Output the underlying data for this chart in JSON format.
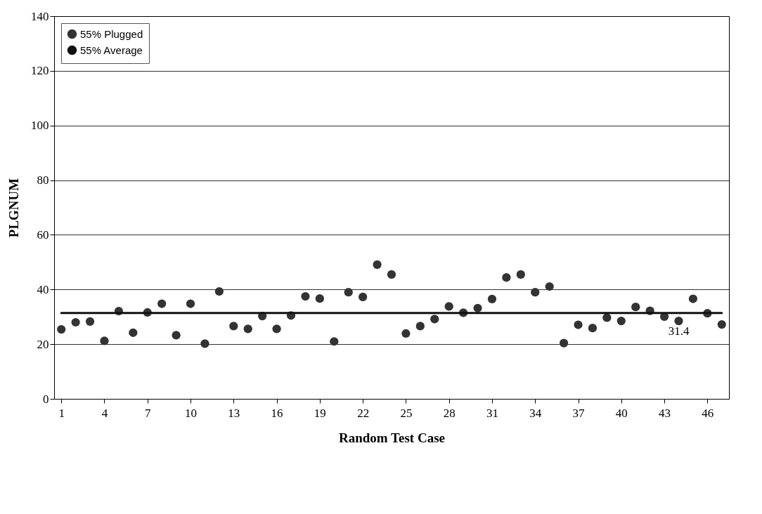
{
  "chart_data": {
    "type": "scatter",
    "xlabel": "Random Test Case",
    "ylabel": "PLGNUM",
    "x": [
      1,
      2,
      3,
      4,
      5,
      6,
      7,
      8,
      9,
      10,
      11,
      12,
      13,
      14,
      15,
      16,
      17,
      18,
      19,
      20,
      21,
      22,
      23,
      24,
      25,
      26,
      27,
      28,
      29,
      30,
      31,
      32,
      33,
      34,
      35,
      36,
      37,
      38,
      39,
      40,
      41,
      42,
      43,
      44,
      45,
      46,
      47
    ],
    "series": [
      {
        "name": "55% Plugged",
        "color": "#333333",
        "values": [
          25.4,
          28.0,
          28.3,
          21.2,
          32.1,
          24.2,
          31.6,
          34.8,
          23.3,
          34.8,
          20.2,
          39.3,
          26.6,
          25.6,
          30.3,
          25.6,
          30.5,
          37.5,
          36.7,
          21.0,
          39.0,
          37.3,
          49.1,
          45.5,
          23.9,
          26.6,
          29.2,
          33.8,
          31.5,
          33.2,
          36.5,
          44.4,
          45.5,
          39.0,
          41.1,
          20.4,
          27.1,
          25.9,
          29.7,
          28.5,
          33.6,
          32.2,
          30.1,
          28.5,
          36.6,
          31.3,
          27.2
        ]
      },
      {
        "name": "55% Average",
        "type": "line",
        "color": "#111111",
        "marker": "none",
        "x": [
          1,
          47
        ],
        "values": [
          31.4,
          31.4
        ]
      }
    ],
    "annotations": [
      {
        "text": "31.4",
        "x": 44,
        "y": 31.4
      }
    ],
    "xlim": [
      0.5,
      47.5
    ],
    "xticks": [
      1,
      4,
      7,
      10,
      13,
      16,
      19,
      22,
      25,
      28,
      31,
      34,
      37,
      40,
      43,
      46
    ],
    "ylim": [
      0,
      140
    ],
    "yticks": [
      0,
      20,
      40,
      60,
      80,
      100,
      120,
      140
    ],
    "grid": "y",
    "legend": "top left",
    "marker": "circle"
  }
}
